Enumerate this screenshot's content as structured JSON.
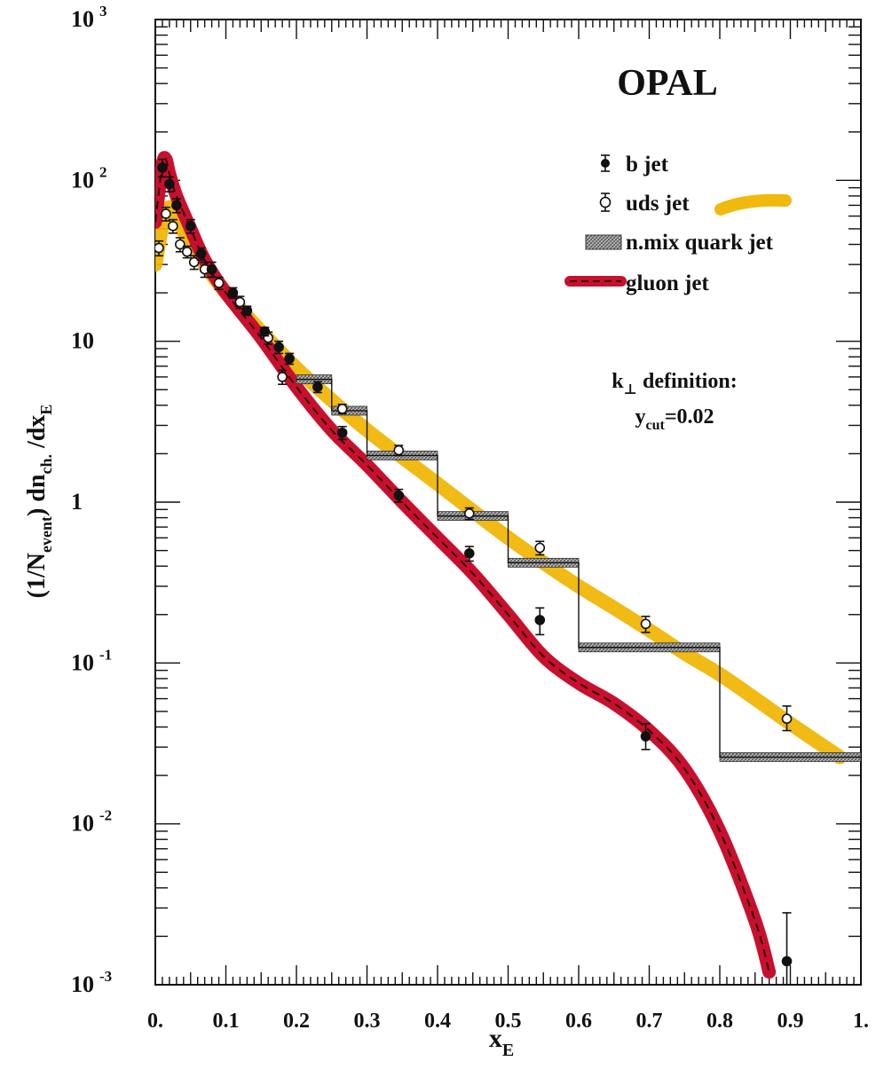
{
  "chart_data": {
    "type": "line",
    "title": "OPAL",
    "xlabel": "x",
    "xlabel_sub": "E",
    "ylabel_parts": [
      "(1/N",
      "event",
      ") dn",
      "ch.",
      " /dx",
      "E"
    ],
    "xscale": "linear",
    "yscale": "log",
    "xlim": [
      0.0,
      1.0
    ],
    "ylim": [
      0.001,
      1000
    ],
    "x_tick_labels": [
      {
        "x": 0.0,
        "label": "0."
      },
      {
        "x": 0.1,
        "label": "0.1"
      },
      {
        "x": 0.2,
        "label": "0.2"
      },
      {
        "x": 0.3,
        "label": "0.3"
      },
      {
        "x": 0.4,
        "label": "0.4"
      },
      {
        "x": 0.5,
        "label": "0.5"
      },
      {
        "x": 0.6,
        "label": "0.6"
      },
      {
        "x": 0.7,
        "label": "0.7"
      },
      {
        "x": 0.8,
        "label": "0.8"
      },
      {
        "x": 0.9,
        "label": "0.9"
      },
      {
        "x": 1.0,
        "label": "1."
      }
    ],
    "y_tick_labels": [
      {
        "y": 1000,
        "base": "10",
        "exp": "3"
      },
      {
        "y": 100,
        "base": "10",
        "exp": "2"
      },
      {
        "y": 10,
        "base": "10",
        "exp": ""
      },
      {
        "y": 1,
        "base": "1",
        "exp": ""
      },
      {
        "y": 0.1,
        "base": "10",
        "exp": "-1"
      },
      {
        "y": 0.01,
        "base": "10",
        "exp": "-2"
      },
      {
        "y": 0.001,
        "base": "10",
        "exp": "-3"
      }
    ],
    "legend": [
      {
        "name": "b jet",
        "style": "filled-point"
      },
      {
        "name": "uds jet",
        "style": "open-point-and-band"
      },
      {
        "name": "n.mix quark jet",
        "style": "hatched-box"
      },
      {
        "name": "gluon jet",
        "style": "thick-line"
      }
    ],
    "annotation": {
      "line1": "k",
      "line1_sub": "⊥",
      "line1_rest": " definition:",
      "line2": "y",
      "line2_sub": "cut",
      "line2_rest": "=0.02"
    },
    "colors": {
      "uds_band": "#f0b400",
      "gluon_band": "#c8102e",
      "gluon_dash": "#2a0000",
      "hatch": "#9a9a9a"
    },
    "series": [
      {
        "name": "b jet",
        "marker": "filled-circle",
        "points": [
          {
            "x": 0.01,
            "y": 120,
            "lo": 105,
            "hi": 135
          },
          {
            "x": 0.02,
            "y": 95,
            "lo": 85,
            "hi": 105
          },
          {
            "x": 0.03,
            "y": 70,
            "lo": 63,
            "hi": 77
          },
          {
            "x": 0.05,
            "y": 52,
            "lo": 47,
            "hi": 57
          },
          {
            "x": 0.065,
            "y": 35,
            "lo": 32,
            "hi": 38
          },
          {
            "x": 0.08,
            "y": 28,
            "lo": 25,
            "hi": 31
          },
          {
            "x": 0.11,
            "y": 20,
            "lo": 18.5,
            "hi": 21.5
          },
          {
            "x": 0.13,
            "y": 15.5,
            "lo": 14.5,
            "hi": 16.5
          },
          {
            "x": 0.155,
            "y": 11.5,
            "lo": 10.8,
            "hi": 12.2
          },
          {
            "x": 0.175,
            "y": 9.2,
            "lo": 8.4,
            "hi": 10.0
          },
          {
            "x": 0.19,
            "y": 7.8,
            "lo": 7.2,
            "hi": 8.4
          },
          {
            "x": 0.23,
            "y": 5.2,
            "lo": 4.8,
            "hi": 5.6
          },
          {
            "x": 0.265,
            "y": 2.7,
            "lo": 2.45,
            "hi": 2.95
          },
          {
            "x": 0.345,
            "y": 1.1,
            "lo": 1.0,
            "hi": 1.2
          },
          {
            "x": 0.445,
            "y": 0.48,
            "lo": 0.43,
            "hi": 0.53
          },
          {
            "x": 0.545,
            "y": 0.185,
            "lo": 0.15,
            "hi": 0.22
          },
          {
            "x": 0.695,
            "y": 0.035,
            "lo": 0.029,
            "hi": 0.042
          },
          {
            "x": 0.895,
            "y": 0.0014,
            "lo": 0.001,
            "hi": 0.0028
          }
        ]
      },
      {
        "name": "uds jet",
        "marker": "open-circle",
        "points": [
          {
            "x": 0.005,
            "y": 38,
            "lo": 34,
            "hi": 42
          },
          {
            "x": 0.015,
            "y": 62,
            "lo": 56,
            "hi": 68
          },
          {
            "x": 0.025,
            "y": 52,
            "lo": 47,
            "hi": 57
          },
          {
            "x": 0.035,
            "y": 40,
            "lo": 36,
            "hi": 44
          },
          {
            "x": 0.045,
            "y": 36,
            "lo": 33,
            "hi": 39
          },
          {
            "x": 0.055,
            "y": 31,
            "lo": 28,
            "hi": 34
          },
          {
            "x": 0.07,
            "y": 28,
            "lo": 25,
            "hi": 31
          },
          {
            "x": 0.09,
            "y": 23,
            "lo": 21,
            "hi": 25
          },
          {
            "x": 0.12,
            "y": 17.5,
            "lo": 16,
            "hi": 19
          },
          {
            "x": 0.16,
            "y": 10.5,
            "lo": 9.6,
            "hi": 11.4
          },
          {
            "x": 0.18,
            "y": 6.0,
            "lo": 5.4,
            "hi": 6.6
          },
          {
            "x": 0.265,
            "y": 3.8,
            "lo": 3.55,
            "hi": 4.05
          },
          {
            "x": 0.345,
            "y": 2.1,
            "lo": 1.95,
            "hi": 2.25
          },
          {
            "x": 0.445,
            "y": 0.85,
            "lo": 0.78,
            "hi": 0.92
          },
          {
            "x": 0.545,
            "y": 0.52,
            "lo": 0.47,
            "hi": 0.57
          },
          {
            "x": 0.695,
            "y": 0.175,
            "lo": 0.155,
            "hi": 0.195
          },
          {
            "x": 0.895,
            "y": 0.045,
            "lo": 0.038,
            "hi": 0.054
          }
        ]
      },
      {
        "name": "uds jet band",
        "points": [
          {
            "x": 0.0,
            "y": 30
          },
          {
            "x": 0.01,
            "y": 52
          },
          {
            "x": 0.02,
            "y": 68
          },
          {
            "x": 0.03,
            "y": 58
          },
          {
            "x": 0.05,
            "y": 40
          },
          {
            "x": 0.07,
            "y": 30
          },
          {
            "x": 0.1,
            "y": 20
          },
          {
            "x": 0.15,
            "y": 11.5
          },
          {
            "x": 0.2,
            "y": 6.8
          },
          {
            "x": 0.25,
            "y": 4.3
          },
          {
            "x": 0.3,
            "y": 2.8
          },
          {
            "x": 0.35,
            "y": 1.9
          },
          {
            "x": 0.4,
            "y": 1.3
          },
          {
            "x": 0.45,
            "y": 0.88
          },
          {
            "x": 0.5,
            "y": 0.6
          },
          {
            "x": 0.55,
            "y": 0.42
          },
          {
            "x": 0.6,
            "y": 0.3
          },
          {
            "x": 0.65,
            "y": 0.22
          },
          {
            "x": 0.7,
            "y": 0.16
          },
          {
            "x": 0.75,
            "y": 0.115
          },
          {
            "x": 0.8,
            "y": 0.085
          },
          {
            "x": 0.85,
            "y": 0.06
          },
          {
            "x": 0.9,
            "y": 0.042
          },
          {
            "x": 0.97,
            "y": 0.026
          }
        ]
      },
      {
        "name": "gluon jet",
        "points": [
          {
            "x": 0.0,
            "y": 55
          },
          {
            "x": 0.01,
            "y": 125
          },
          {
            "x": 0.015,
            "y": 135
          },
          {
            "x": 0.02,
            "y": 110
          },
          {
            "x": 0.03,
            "y": 80
          },
          {
            "x": 0.05,
            "y": 50
          },
          {
            "x": 0.07,
            "y": 32
          },
          {
            "x": 0.1,
            "y": 20
          },
          {
            "x": 0.15,
            "y": 10.5
          },
          {
            "x": 0.2,
            "y": 5.2
          },
          {
            "x": 0.25,
            "y": 2.8
          },
          {
            "x": 0.3,
            "y": 1.7
          },
          {
            "x": 0.35,
            "y": 1.0
          },
          {
            "x": 0.4,
            "y": 0.6
          },
          {
            "x": 0.45,
            "y": 0.36
          },
          {
            "x": 0.5,
            "y": 0.2
          },
          {
            "x": 0.55,
            "y": 0.11
          },
          {
            "x": 0.6,
            "y": 0.075
          },
          {
            "x": 0.65,
            "y": 0.056
          },
          {
            "x": 0.7,
            "y": 0.038
          },
          {
            "x": 0.75,
            "y": 0.022
          },
          {
            "x": 0.8,
            "y": 0.009
          },
          {
            "x": 0.85,
            "y": 0.0025
          },
          {
            "x": 0.87,
            "y": 0.0012
          }
        ]
      },
      {
        "name": "n.mix quark jet",
        "bins": [
          {
            "x0": 0.2,
            "x1": 0.25,
            "y": 5.8
          },
          {
            "x0": 0.25,
            "x1": 0.3,
            "y": 3.7
          },
          {
            "x0": 0.3,
            "x1": 0.4,
            "y": 1.95
          },
          {
            "x0": 0.4,
            "x1": 0.5,
            "y": 0.82
          },
          {
            "x0": 0.5,
            "x1": 0.6,
            "y": 0.42
          },
          {
            "x0": 0.6,
            "x1": 0.8,
            "y": 0.125
          },
          {
            "x0": 0.8,
            "x1": 1.0,
            "y": 0.026
          }
        ]
      }
    ]
  }
}
